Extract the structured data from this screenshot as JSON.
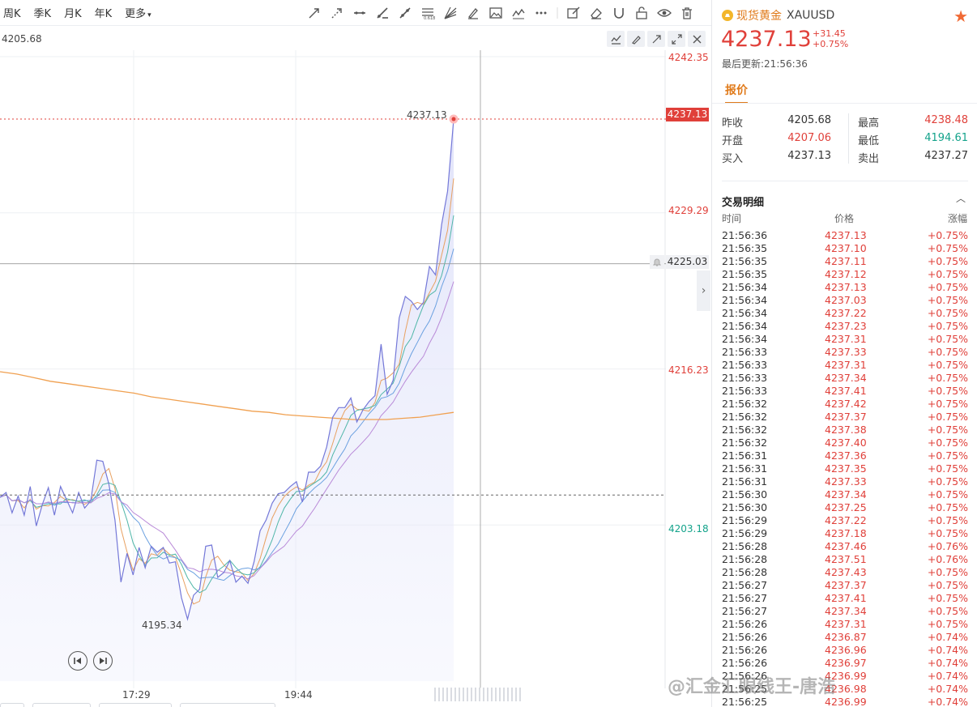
{
  "toolbar": {
    "periods": [
      "周K",
      "季K",
      "月K",
      "年K",
      "更多"
    ],
    "prev_close_label": "4205.68"
  },
  "chart_data": {
    "type": "line",
    "title": "",
    "symbol": "XAUUSD",
    "x_tick_labels": [
      "17:29",
      "19:44"
    ],
    "y_tick_labels": [
      "4242.35",
      "4237.13",
      "4229.29",
      "4225.03",
      "4216.23",
      "4203.18"
    ],
    "ylim": [
      4190.12,
      4242.35
    ],
    "current_price_tag": "4237.13",
    "crosshair_price_tag": "4225.03",
    "prev_close": 4205.68,
    "high_marker": "4237.13",
    "low_marker": "4195.34",
    "grid": true,
    "price_series": [
      4205.5,
      4205.9,
      4204.2,
      4205.6,
      4204.0,
      4206.4,
      4203.1,
      4204.9,
      4206.3,
      4204.0,
      4206.4,
      4205.3,
      4204.2,
      4205.9,
      4204.6,
      4205.2,
      4208.6,
      4208.5,
      4206.6,
      4203.6,
      4198.4,
      4200.8,
      4199.0,
      4201.3,
      4199.6,
      4201.4,
      4200.9,
      4201.3,
      4200.0,
      4200.1,
      4197.1,
      4195.3,
      4197.3,
      4197.8,
      4201.4,
      4201.5,
      4198.8,
      4199.2,
      4200.2,
      4198.4,
      4198.9,
      4198.3,
      4200.1,
      4202.7,
      4203.6,
      4205.0,
      4205.8,
      4205.9,
      4206.4,
      4206.8,
      4205.1,
      4207.6,
      4207.6,
      4208.1,
      4209.7,
      4212.2,
      4213.0,
      4213.0,
      4213.8,
      4211.8,
      4212.8,
      4213.5,
      4214.0,
      4218.3,
      4214.1,
      4215.3,
      4220.5,
      4222.3,
      4221.9,
      4221.2,
      4221.8,
      4224.8,
      4224.1,
      4228.3,
      4231.1,
      4237.1
    ],
    "ma_series": [
      4216.0,
      4215.8,
      4215.5,
      4215.2,
      4215.0,
      4214.8,
      4214.6,
      4214.4,
      4214.2,
      4213.9,
      4213.7,
      4213.5,
      4213.3,
      4213.1,
      4212.9,
      4212.7,
      4212.6,
      4212.4,
      4212.3,
      4212.2,
      4212.1,
      4212.0,
      4212.0,
      4212.0,
      4212.1,
      4212.2,
      4212.4,
      4212.6
    ]
  },
  "panel": {
    "name": "现货黄金",
    "code": "XAUUSD",
    "price": "4237.13",
    "change": "+31.45",
    "change_pct": "+0.75%",
    "updated": "最后更新:21:56:36",
    "tab": "报价",
    "quote": {
      "prev_close_label": "昨收",
      "prev_close": "4205.68",
      "open_label": "开盘",
      "open": "4207.06",
      "bid_label": "买入",
      "bid": "4237.13",
      "high_label": "最高",
      "high": "4238.48",
      "low_label": "最低",
      "low": "4194.61",
      "ask_label": "卖出",
      "ask": "4237.27"
    },
    "trades_title": "交易明细",
    "headers": {
      "time": "时间",
      "price": "价格",
      "change": "涨幅"
    },
    "trades": [
      [
        "21:56:36",
        "4237.13",
        "+0.75%"
      ],
      [
        "21:56:35",
        "4237.10",
        "+0.75%"
      ],
      [
        "21:56:35",
        "4237.11",
        "+0.75%"
      ],
      [
        "21:56:35",
        "4237.12",
        "+0.75%"
      ],
      [
        "21:56:34",
        "4237.13",
        "+0.75%"
      ],
      [
        "21:56:34",
        "4237.03",
        "+0.75%"
      ],
      [
        "21:56:34",
        "4237.22",
        "+0.75%"
      ],
      [
        "21:56:34",
        "4237.23",
        "+0.75%"
      ],
      [
        "21:56:34",
        "4237.31",
        "+0.75%"
      ],
      [
        "21:56:33",
        "4237.33",
        "+0.75%"
      ],
      [
        "21:56:33",
        "4237.31",
        "+0.75%"
      ],
      [
        "21:56:33",
        "4237.34",
        "+0.75%"
      ],
      [
        "21:56:33",
        "4237.41",
        "+0.75%"
      ],
      [
        "21:56:32",
        "4237.42",
        "+0.75%"
      ],
      [
        "21:56:32",
        "4237.37",
        "+0.75%"
      ],
      [
        "21:56:32",
        "4237.38",
        "+0.75%"
      ],
      [
        "21:56:32",
        "4237.40",
        "+0.75%"
      ],
      [
        "21:56:31",
        "4237.36",
        "+0.75%"
      ],
      [
        "21:56:31",
        "4237.35",
        "+0.75%"
      ],
      [
        "21:56:31",
        "4237.33",
        "+0.75%"
      ],
      [
        "21:56:30",
        "4237.34",
        "+0.75%"
      ],
      [
        "21:56:30",
        "4237.25",
        "+0.75%"
      ],
      [
        "21:56:29",
        "4237.22",
        "+0.75%"
      ],
      [
        "21:56:29",
        "4237.18",
        "+0.75%"
      ],
      [
        "21:56:28",
        "4237.46",
        "+0.76%"
      ],
      [
        "21:56:28",
        "4237.51",
        "+0.76%"
      ],
      [
        "21:56:28",
        "4237.43",
        "+0.75%"
      ],
      [
        "21:56:27",
        "4237.37",
        "+0.75%"
      ],
      [
        "21:56:27",
        "4237.41",
        "+0.75%"
      ],
      [
        "21:56:27",
        "4237.34",
        "+0.75%"
      ],
      [
        "21:56:26",
        "4237.31",
        "+0.75%"
      ],
      [
        "21:56:26",
        "4236.87",
        "+0.74%"
      ],
      [
        "21:56:26",
        "4236.96",
        "+0.74%"
      ],
      [
        "21:56:26",
        "4236.97",
        "+0.74%"
      ],
      [
        "21:56:26",
        "4236.99",
        "+0.74%"
      ],
      [
        "21:56:25",
        "4236.98",
        "+0.74%"
      ],
      [
        "21:56:25",
        "4236.99",
        "+0.74%"
      ]
    ]
  },
  "watermark": "@汇金汇眼线王-唐浩",
  "colors": {
    "up": "#e0403a",
    "down": "#14a38b",
    "ma": "#f0a050",
    "accent": "#e07a1a"
  }
}
